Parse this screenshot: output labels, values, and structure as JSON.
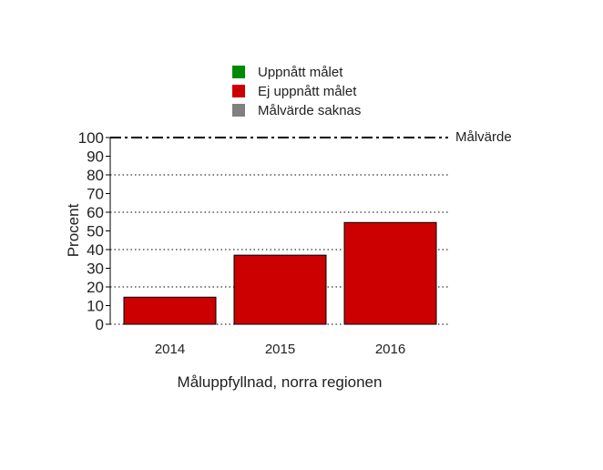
{
  "legend": [
    {
      "label": "Uppnått målet",
      "color": "#008a00"
    },
    {
      "label": "Ej uppnått målet",
      "color": "#cc0000"
    },
    {
      "label": "Målvärde saknas",
      "color": "#808080"
    }
  ],
  "chart_data": {
    "type": "bar",
    "categories": [
      "2014",
      "2015",
      "2016"
    ],
    "values": [
      14.5,
      37,
      54.5
    ],
    "bar_colors": [
      "#cc0000",
      "#cc0000",
      "#cc0000"
    ],
    "ylabel": "Procent",
    "xlabel": "Måluppfyllnad, norra regionen",
    "ylim": [
      0,
      100
    ],
    "yticks": [
      0,
      10,
      20,
      30,
      40,
      50,
      60,
      70,
      80,
      90,
      100
    ],
    "grid": "dotted horizontal at 20, 40, 60, 80",
    "target": {
      "value": 100,
      "label": "Målvärde"
    },
    "legend_position": "top-center"
  }
}
